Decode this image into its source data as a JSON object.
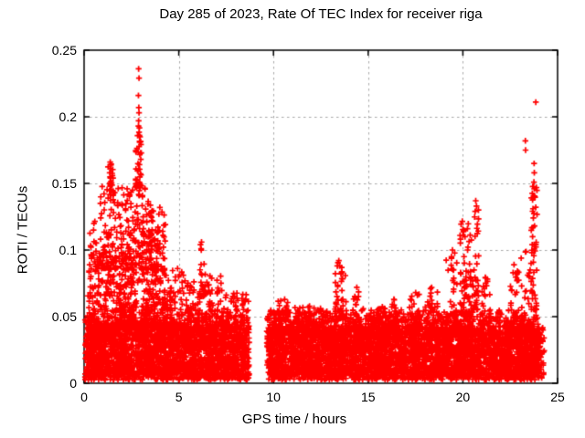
{
  "chart_data": {
    "type": "scatter",
    "title": "Day 285 of 2023, Rate Of TEC Index for receiver riga",
    "xlabel": "GPS time / hours",
    "ylabel": "ROTI / TECUs",
    "xlim": [
      0,
      25
    ],
    "ylim": [
      0,
      0.25
    ],
    "xticks": [
      0,
      5,
      10,
      15,
      20,
      25
    ],
    "xtick_labels": [
      "0",
      "5",
      "10",
      "15",
      "20",
      "25"
    ],
    "yticks": [
      0,
      0.05,
      0.1,
      0.15,
      0.2,
      0.25
    ],
    "ytick_labels": [
      "0",
      "0.05",
      "0.1",
      "0.15",
      "0.2",
      "0.25"
    ],
    "grid": true,
    "grid_color": "#a8a8a8",
    "border_color": "#000000",
    "background": "#ffffff",
    "marker": "plus",
    "marker_color": "#ff0000",
    "marker_size_px": 7,
    "legend": null,
    "data_gap_hours": [
      8.72,
      9.65
    ],
    "data_x_range_hours": [
      0.05,
      24.3
    ],
    "max_point": [
      2.88,
      0.236
    ],
    "scatter_spec": {
      "baseline_segments": [
        {
          "x0": 0.05,
          "x1": 8.72,
          "points_per_hour": 300,
          "y0": 0.006,
          "y1": 0.042
        },
        {
          "x0": 9.65,
          "x1": 24.05,
          "points_per_hour": 300,
          "y0": 0.006,
          "y1": 0.04
        }
      ],
      "baseline_upper_fuzz": 0.018,
      "baseline_lower_fuzz": 0.0035,
      "clusters": [
        [
          0.2,
          4.3,
          500,
          0.04,
          0.095
        ],
        [
          0.8,
          3.6,
          260,
          0.085,
          0.148
        ],
        [
          0.3,
          0.65,
          18,
          0.08,
          0.122
        ],
        [
          1.25,
          1.55,
          22,
          0.14,
          0.167
        ],
        [
          2.72,
          3.02,
          42,
          0.148,
          0.192
        ],
        [
          3.5,
          4.3,
          48,
          0.085,
          0.13
        ],
        [
          4.3,
          5.3,
          70,
          0.042,
          0.088
        ],
        [
          5.3,
          6.1,
          50,
          0.042,
          0.078
        ],
        [
          6.08,
          6.35,
          20,
          0.065,
          0.106
        ],
        [
          6.35,
          7.3,
          60,
          0.042,
          0.085
        ],
        [
          7.3,
          8.72,
          80,
          0.04,
          0.068
        ],
        [
          9.8,
          24.0,
          550,
          0.036,
          0.055
        ],
        [
          10.2,
          10.8,
          30,
          0.042,
          0.066
        ],
        [
          11.2,
          12.7,
          50,
          0.04,
          0.06
        ],
        [
          13.25,
          13.85,
          45,
          0.048,
          0.093
        ],
        [
          14.2,
          14.6,
          16,
          0.042,
          0.072
        ],
        [
          15.3,
          16.0,
          18,
          0.04,
          0.058
        ],
        [
          16.1,
          16.6,
          18,
          0.042,
          0.065
        ],
        [
          17.1,
          17.7,
          22,
          0.042,
          0.071
        ],
        [
          18.0,
          18.7,
          28,
          0.045,
          0.072
        ],
        [
          19.1,
          19.7,
          30,
          0.05,
          0.1
        ],
        [
          19.85,
          20.45,
          70,
          0.05,
          0.122
        ],
        [
          20.5,
          20.85,
          35,
          0.055,
          0.137
        ],
        [
          21.0,
          21.5,
          20,
          0.045,
          0.08
        ],
        [
          22.4,
          22.95,
          18,
          0.045,
          0.09
        ],
        [
          23.05,
          23.5,
          14,
          0.05,
          0.1
        ],
        [
          23.6,
          23.92,
          45,
          0.055,
          0.158
        ],
        [
          24.0,
          24.3,
          30,
          0.004,
          0.045
        ]
      ],
      "outliers": [
        [
          2.88,
          0.236
        ],
        [
          2.9,
          0.229
        ],
        [
          2.87,
          0.216
        ],
        [
          2.89,
          0.207
        ],
        [
          2.9,
          0.203
        ],
        [
          2.88,
          0.197
        ],
        [
          2.87,
          0.193
        ],
        [
          2.92,
          0.186
        ],
        [
          2.95,
          0.181
        ],
        [
          2.78,
          0.147
        ],
        [
          1.38,
          0.166
        ],
        [
          1.4,
          0.161
        ],
        [
          1.36,
          0.158
        ],
        [
          1.39,
          0.154
        ],
        [
          0.52,
          0.12
        ],
        [
          0.5,
          0.115
        ],
        [
          6.2,
          0.106
        ],
        [
          6.18,
          0.101
        ],
        [
          4.0,
          0.132
        ],
        [
          3.95,
          0.127
        ],
        [
          13.45,
          0.092
        ],
        [
          13.5,
          0.088
        ],
        [
          14.4,
          0.072
        ],
        [
          19.45,
          0.1
        ],
        [
          19.4,
          0.095
        ],
        [
          20.68,
          0.137
        ],
        [
          20.72,
          0.133
        ],
        [
          20.65,
          0.129
        ],
        [
          23.3,
          0.182
        ],
        [
          23.31,
          0.175
        ],
        [
          23.85,
          0.211
        ],
        [
          23.76,
          0.165
        ],
        [
          23.77,
          0.158
        ],
        [
          23.75,
          0.151
        ],
        [
          23.77,
          0.146
        ],
        [
          23.73,
          0.14
        ],
        [
          23.7,
          0.131
        ],
        [
          23.72,
          0.124
        ],
        [
          23.7,
          0.117
        ],
        [
          23.68,
          0.11
        ],
        [
          23.66,
          0.104
        ],
        [
          23.64,
          0.098
        ],
        [
          23.6,
          0.09
        ],
        [
          23.55,
          0.085
        ],
        [
          23.5,
          0.08
        ],
        [
          22.7,
          0.089
        ],
        [
          22.65,
          0.083
        ]
      ]
    }
  }
}
